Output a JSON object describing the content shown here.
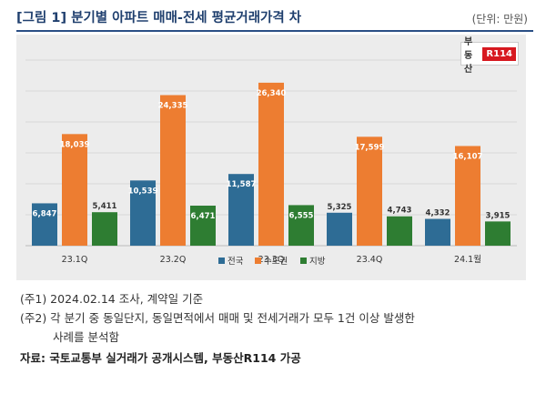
{
  "header": {
    "title": "[그림 1] 분기별 아파트 매매-전세 평균거래가격 차",
    "unit": "(단위: 만원)"
  },
  "logo": {
    "text": "부동산",
    "mark": "R114"
  },
  "chart_data": {
    "type": "bar",
    "categories": [
      "23.1Q",
      "23.2Q",
      "23.3Q",
      "23.4Q",
      "24.1월"
    ],
    "series": [
      {
        "name": "전국",
        "color": "#2e6c95",
        "values": [
          6847,
          10539,
          11587,
          5325,
          4332
        ],
        "labels": [
          "6,847",
          "10,539",
          "11,587",
          "5,325",
          "4,332"
        ]
      },
      {
        "name": "수도권",
        "color": "#ed7d31",
        "values": [
          18039,
          24335,
          26340,
          17599,
          16107
        ],
        "labels": [
          "18,039",
          "24,335",
          "26,340",
          "17,599",
          "16,107"
        ]
      },
      {
        "name": "지방",
        "color": "#2e7d32",
        "values": [
          5411,
          6471,
          6555,
          4743,
          3915
        ],
        "labels": [
          "5,411",
          "6,471",
          "6,555",
          "4,743",
          "3,915"
        ]
      }
    ],
    "ylim": [
      0,
      30000
    ],
    "grid": true,
    "legend_position": "bottom-center"
  },
  "notes": {
    "note1": "(주1) 2024.02.14 조사, 계약일 기준",
    "note2": "(주2) 각 분기 중 동일단지, 동일면적에서 매매 및 전세거래가 모두 1건 이상 발생한",
    "note2_cont": "사례를 분석함",
    "source": "자료: 국토교통부 실거래가 공개시스템, 부동산R114 가공"
  }
}
